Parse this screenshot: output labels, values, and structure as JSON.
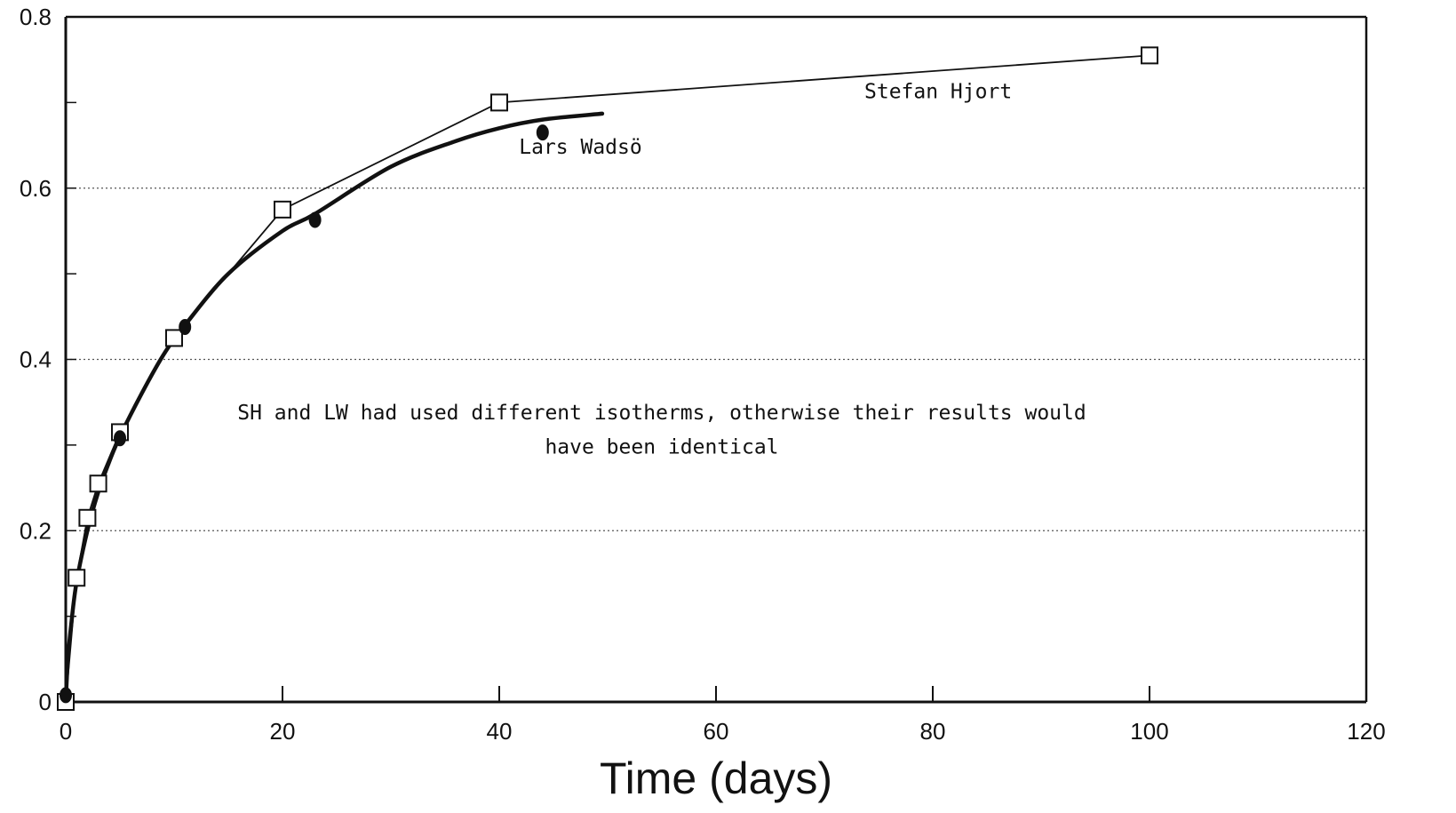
{
  "chart_data": {
    "type": "line",
    "title": "",
    "xlabel": "Time (days)",
    "ylabel": "",
    "xlim": [
      0,
      120
    ],
    "ylim": [
      0,
      0.8
    ],
    "xticks": [
      0,
      20,
      40,
      60,
      80,
      100,
      120
    ],
    "xtick_labels": [
      "0",
      "20",
      "40",
      "60",
      "80",
      "100",
      "120"
    ],
    "yticks": [
      0,
      0.2,
      0.4,
      0.6,
      0.8
    ],
    "ytick_labels": [
      "0",
      "0.2",
      "0.4",
      "0.6",
      "0.8"
    ],
    "grid": {
      "horizontal_dotted": [
        0.2,
        0.4,
        0.6
      ]
    },
    "series": [
      {
        "name": "Stefan Hjort",
        "style": "thin line with open square markers",
        "x": [
          0,
          1,
          2,
          3,
          5,
          10,
          20,
          40,
          100
        ],
        "y": [
          0,
          0.145,
          0.215,
          0.255,
          0.315,
          0.425,
          0.575,
          0.7,
          0.755
        ]
      },
      {
        "name": "Lars Wadsö",
        "style": "thick line with filled dot markers",
        "x": [
          0,
          0.2,
          0.5,
          1,
          2,
          3,
          4,
          5,
          7,
          9,
          11,
          15,
          20,
          23,
          30,
          36,
          40,
          44,
          49.5
        ],
        "y": [
          0,
          0.05,
          0.09,
          0.14,
          0.2,
          0.245,
          0.28,
          0.31,
          0.36,
          0.405,
          0.44,
          0.5,
          0.55,
          0.57,
          0.625,
          0.655,
          0.67,
          0.68,
          0.687
        ],
        "markers_x": [
          0,
          5,
          11,
          23,
          44
        ],
        "markers_y": [
          0.01,
          0.31,
          0.44,
          0.565,
          0.667
        ]
      }
    ],
    "annotations": [
      {
        "text": "Stefan Hjort",
        "x": 80.5,
        "y": 0.705
      },
      {
        "text": "Lars Wadsö",
        "x": 47.5,
        "y": 0.64
      },
      {
        "text": "SH and LW had used different isotherms, otherwise their results would",
        "x": 55,
        "y": 0.33
      },
      {
        "text": "have been identical",
        "x": 55,
        "y": 0.29
      }
    ],
    "colors": {
      "ink": "#111111",
      "background": "#ffffff"
    }
  }
}
